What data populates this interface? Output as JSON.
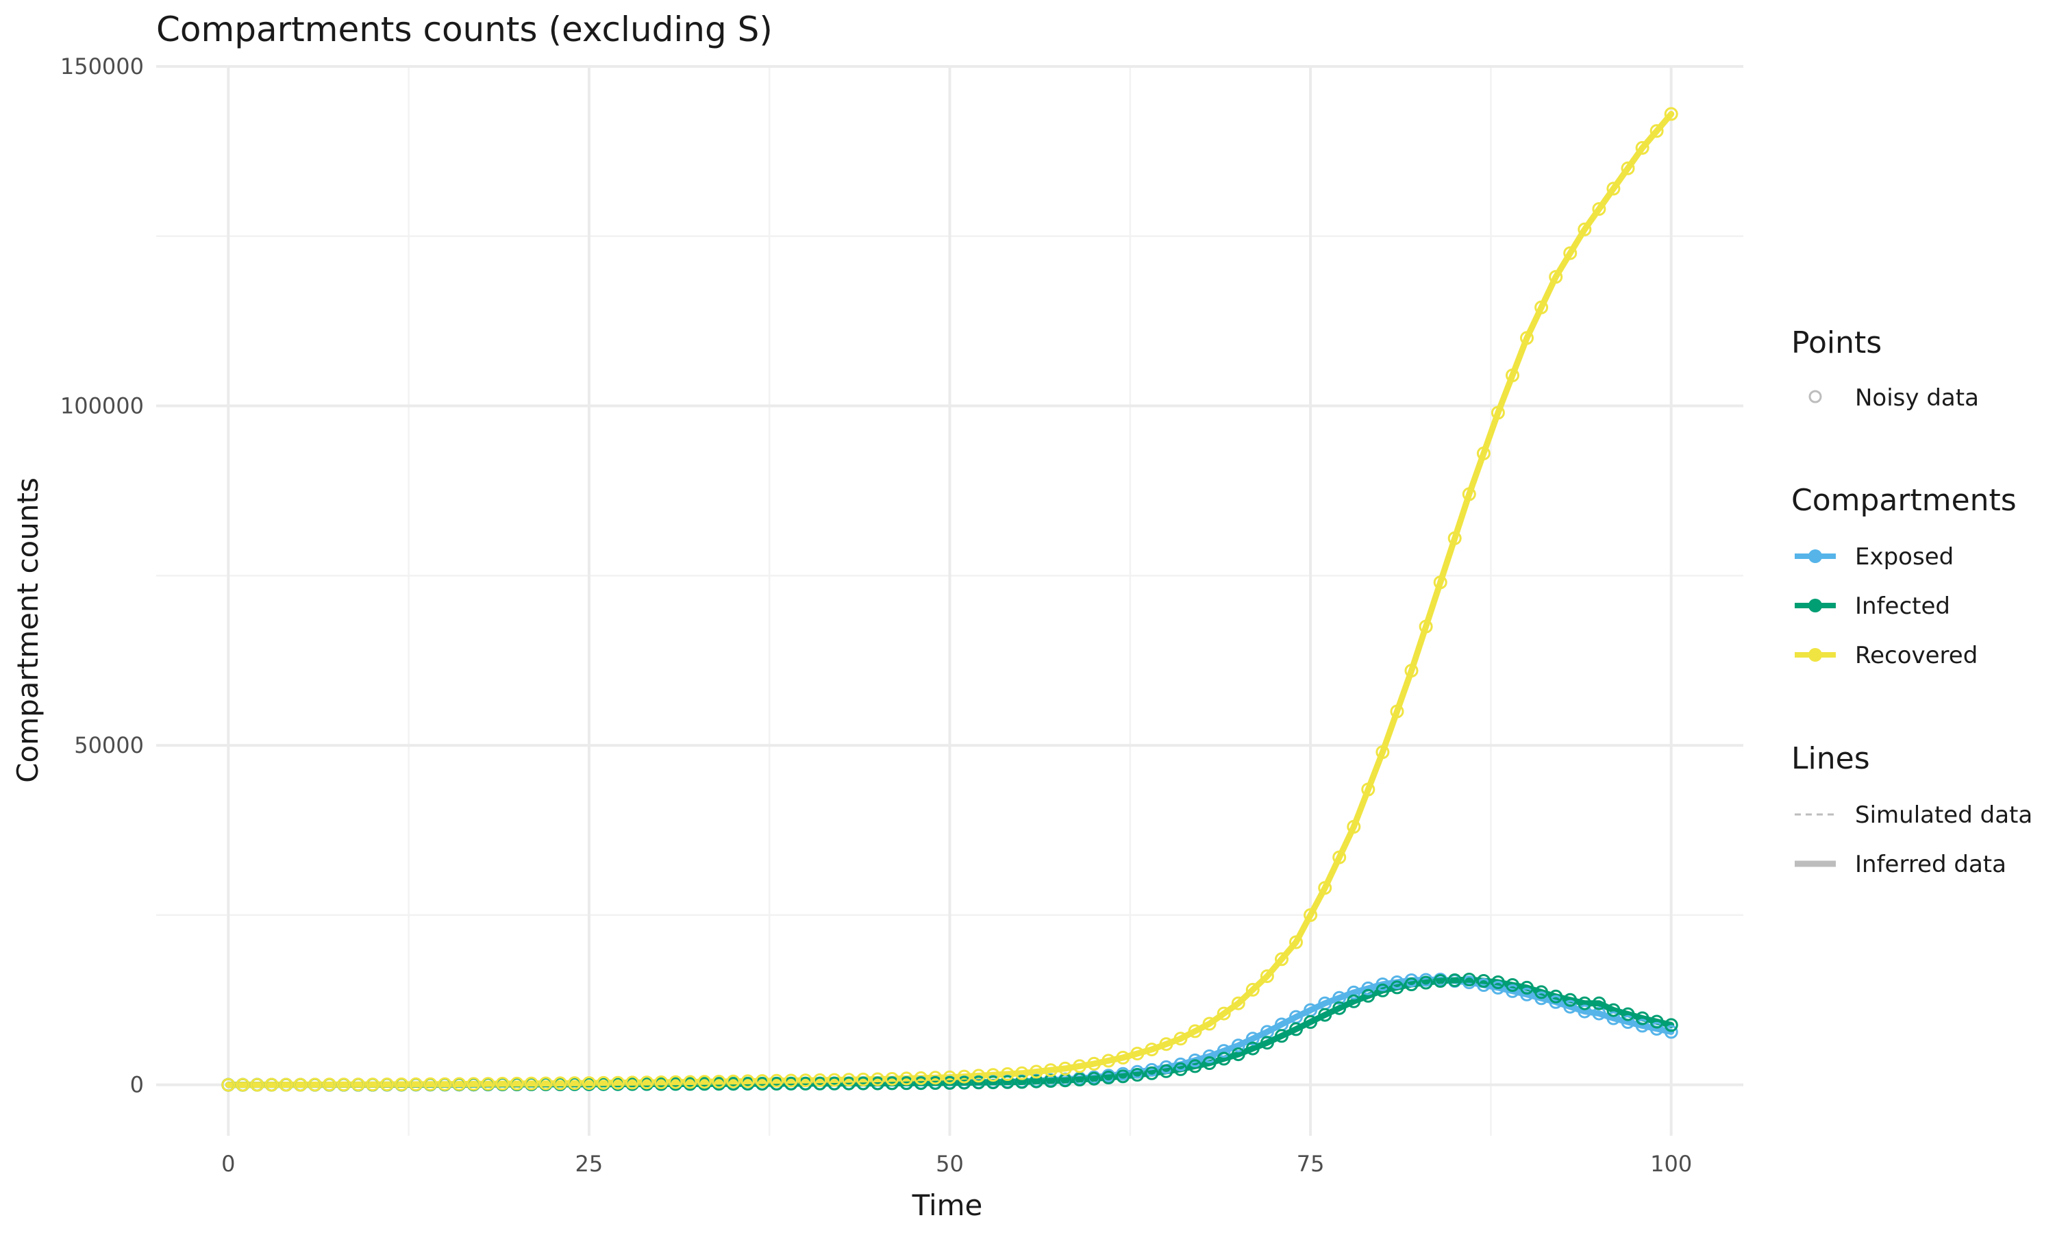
{
  "chart_data": {
    "type": "line",
    "title": "Compartments counts (excluding S)",
    "xlabel": "Time",
    "ylabel": "Compartment counts",
    "xlim": [
      -5,
      105
    ],
    "ylim": [
      -7500,
      150000
    ],
    "x_ticks": [
      0,
      25,
      50,
      75,
      100
    ],
    "x_tick_labels": [
      "0",
      "25",
      "50",
      "75",
      "100"
    ],
    "y_ticks": [
      0,
      50000,
      100000,
      150000
    ],
    "y_tick_labels": [
      "0",
      "50000",
      "100000",
      "150000"
    ],
    "grid": true,
    "legend_position": "right",
    "legend": {
      "points": {
        "title": "Points",
        "items": [
          "Noisy data"
        ]
      },
      "compartments": {
        "title": "Compartments",
        "items": [
          "Exposed",
          "Infected",
          "Recovered"
        ]
      },
      "lines": {
        "title": "Lines",
        "items": [
          "Simulated data",
          "Inferred data"
        ]
      }
    },
    "colors": {
      "Exposed": "#56b4e9",
      "Infected": "#009e73",
      "Recovered": "#f0e442",
      "neutral": "#bdbdbd"
    },
    "x": [
      0,
      5,
      10,
      15,
      20,
      25,
      30,
      35,
      40,
      45,
      50,
      55,
      58,
      60,
      62,
      64,
      66,
      68,
      70,
      72,
      74,
      76,
      78,
      80,
      82,
      84,
      86,
      88,
      90,
      92,
      94,
      95,
      96,
      98,
      100
    ],
    "series": [
      {
        "name": "Exposed",
        "values": [
          0,
          10,
          25,
          50,
          80,
          100,
          140,
          170,
          200,
          250,
          330,
          500,
          800,
          1100,
          1600,
          2200,
          3000,
          4200,
          5800,
          7800,
          10000,
          12000,
          13600,
          14800,
          15400,
          15500,
          15100,
          14300,
          13300,
          12200,
          10800,
          10500,
          9800,
          8700,
          7800
        ]
      },
      {
        "name": "Infected",
        "values": [
          0,
          8,
          20,
          40,
          70,
          90,
          120,
          150,
          180,
          210,
          280,
          420,
          650,
          900,
          1250,
          1700,
          2300,
          3200,
          4500,
          6200,
          8200,
          10300,
          12300,
          13900,
          14800,
          15300,
          15500,
          15100,
          14300,
          13000,
          12000,
          12000,
          11000,
          9800,
          8800
        ]
      },
      {
        "name": "Recovered",
        "values": [
          0,
          20,
          50,
          100,
          180,
          260,
          370,
          500,
          650,
          820,
          1100,
          1700,
          2400,
          3100,
          4000,
          5200,
          6800,
          9000,
          12000,
          16000,
          21000,
          29000,
          38000,
          49000,
          61000,
          74000,
          87000,
          99000,
          110000,
          119000,
          126000,
          129000,
          132000,
          138000,
          143000
        ]
      }
    ]
  }
}
